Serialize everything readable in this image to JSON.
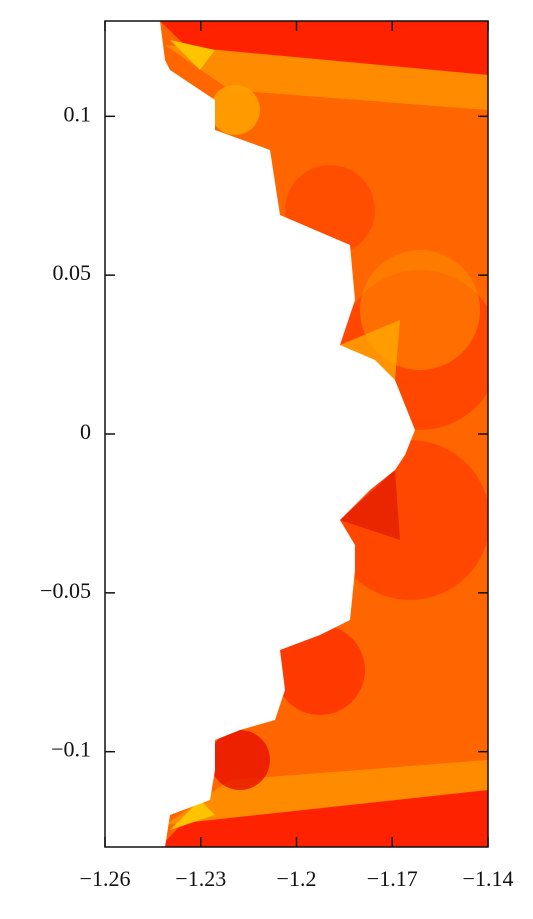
{
  "chart_data": {
    "type": "image",
    "xlim": [
      -1.26,
      -1.14
    ],
    "xticks": [
      {
        "value": -1.26,
        "label": "−1.26"
      },
      {
        "value": -1.23,
        "label": "−1.23"
      },
      {
        "value": -1.2,
        "label": "−1.2"
      },
      {
        "value": -1.17,
        "label": "−1.17"
      },
      {
        "value": -1.14,
        "label": "−1.14"
      }
    ],
    "ylim": [
      -0.13,
      0.13
    ],
    "yticks": [
      {
        "value": -0.1,
        "label": "−0.1"
      },
      {
        "value": -0.05,
        "label": "−0.05"
      },
      0,
      0.05,
      0.1
    ]
  }
}
